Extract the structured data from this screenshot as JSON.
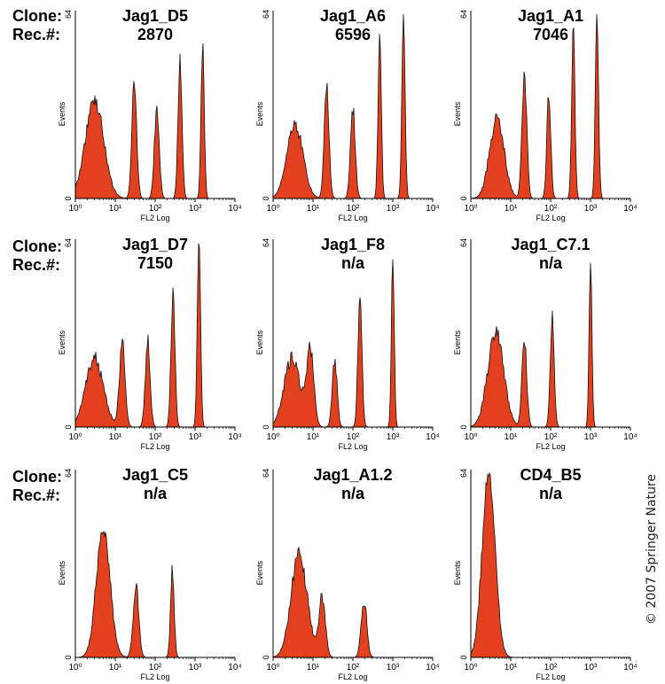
{
  "row_labels": [
    {
      "clone": "Clone:",
      "rec": "Rec.#:"
    },
    {
      "clone": "Clone:",
      "rec": "Rec.#:"
    },
    {
      "clone": "Clone:",
      "rec": "Rec.#:"
    }
  ],
  "copyright": "© 2007 Springer Nature",
  "colors": {
    "fill": "#e2401f",
    "stroke": "#111111"
  },
  "chart_data": [
    {
      "type": "area",
      "title": "Jag1_D5",
      "subtitle": "2870",
      "xlabel": "FL2 Log",
      "ylabel": "Events",
      "xscale": "log",
      "xlim": [
        1,
        10000
      ],
      "ylim": [
        0,
        64
      ],
      "x_ticks": [
        "10⁰",
        "10¹",
        "10²",
        "10³",
        "10⁴"
      ],
      "y_ticks": [
        "0",
        "64"
      ],
      "peaks": [
        {
          "x": 3,
          "height": 34,
          "width": 0.23
        },
        {
          "x": 30,
          "height": 41,
          "width": 0.06
        },
        {
          "x": 110,
          "height": 32,
          "width": 0.06
        },
        {
          "x": 420,
          "height": 48,
          "width": 0.05
        },
        {
          "x": 1550,
          "height": 53,
          "width": 0.04
        }
      ]
    },
    {
      "type": "area",
      "title": "Jag1_A6",
      "subtitle": "6596",
      "xlabel": "FL2 Log",
      "ylabel": "Events",
      "xscale": "log",
      "xlim": [
        1,
        10000
      ],
      "ylim": [
        0,
        64
      ],
      "x_ticks": [
        "10⁰",
        "10¹",
        "10²",
        "10³",
        "10⁴"
      ],
      "y_ticks": [
        "0",
        "64"
      ],
      "peaks": [
        {
          "x": 3.5,
          "height": 26,
          "width": 0.2
        },
        {
          "x": 22,
          "height": 39,
          "width": 0.06
        },
        {
          "x": 100,
          "height": 31,
          "width": 0.06
        },
        {
          "x": 470,
          "height": 57,
          "width": 0.04
        },
        {
          "x": 1850,
          "height": 64,
          "width": 0.04
        }
      ]
    },
    {
      "type": "area",
      "title": "Jag1_A1",
      "subtitle": "7046",
      "xlabel": "FL2 Log",
      "ylabel": "Events",
      "xscale": "log",
      "xlim": [
        1,
        10000
      ],
      "ylim": [
        0,
        64
      ],
      "x_ticks": [
        "10⁰",
        "10¹",
        "10²",
        "10³",
        "10⁴"
      ],
      "y_ticks": [
        "0",
        "64"
      ],
      "peaks": [
        {
          "x": 4.5,
          "height": 28,
          "width": 0.18
        },
        {
          "x": 22,
          "height": 42,
          "width": 0.06
        },
        {
          "x": 90,
          "height": 36,
          "width": 0.05
        },
        {
          "x": 370,
          "height": 61,
          "width": 0.04
        },
        {
          "x": 1450,
          "height": 65,
          "width": 0.04
        }
      ]
    },
    {
      "type": "area",
      "title": "Jag1_D7",
      "subtitle": "7150",
      "xlabel": "FL2 Log",
      "ylabel": "Events",
      "xscale": "log",
      "xlim": [
        1,
        10000
      ],
      "ylim": [
        0,
        64
      ],
      "x_ticks": [
        "10⁰",
        "10¹",
        "10²",
        "10³",
        "10⁴"
      ],
      "y_ticks": [
        "0",
        "64"
      ],
      "peaks": [
        {
          "x": 3,
          "height": 24,
          "width": 0.22
        },
        {
          "x": 15,
          "height": 30,
          "width": 0.07
        },
        {
          "x": 65,
          "height": 30,
          "width": 0.06
        },
        {
          "x": 280,
          "height": 46,
          "width": 0.05
        },
        {
          "x": 1250,
          "height": 65,
          "width": 0.04
        }
      ]
    },
    {
      "type": "area",
      "title": "Jag1_F8",
      "subtitle": "n/a",
      "xlabel": "FL2 Log",
      "ylabel": "Events",
      "xscale": "log",
      "xlim": [
        1,
        10000
      ],
      "ylim": [
        0,
        64
      ],
      "x_ticks": [
        "10⁰",
        "10¹",
        "10²",
        "10³",
        "10⁴"
      ],
      "y_ticks": [
        "0",
        "64"
      ],
      "peaks": [
        {
          "x": 3,
          "height": 24,
          "width": 0.2
        },
        {
          "x": 8.5,
          "height": 26,
          "width": 0.09
        },
        {
          "x": 35,
          "height": 24,
          "width": 0.06
        },
        {
          "x": 150,
          "height": 45,
          "width": 0.05
        },
        {
          "x": 1000,
          "height": 60,
          "width": 0.035
        }
      ]
    },
    {
      "type": "area",
      "title": "Jag1_C7.1",
      "subtitle": "n/a",
      "xlabel": "FL2 Log",
      "ylabel": "Events",
      "xscale": "log",
      "xlim": [
        1,
        10000
      ],
      "ylim": [
        0,
        64
      ],
      "x_ticks": [
        "10⁰",
        "10¹",
        "10²",
        "10³",
        "10⁴"
      ],
      "y_ticks": [
        "0",
        "64"
      ],
      "peaks": [
        {
          "x": 4.2,
          "height": 33,
          "width": 0.2
        },
        {
          "x": 22,
          "height": 30,
          "width": 0.06
        },
        {
          "x": 110,
          "height": 38,
          "width": 0.05
        },
        {
          "x": 1000,
          "height": 57,
          "width": 0.035
        }
      ]
    },
    {
      "type": "area",
      "title": "Jag1_C5",
      "subtitle": "n/a",
      "xlabel": "FL2 Log",
      "ylabel": "Events",
      "xscale": "log",
      "xlim": [
        1,
        10000
      ],
      "ylim": [
        0,
        64
      ],
      "x_ticks": [
        "10⁰",
        "10¹",
        "10²",
        "10³",
        "10⁴"
      ],
      "y_ticks": [
        "0",
        "64"
      ],
      "peaks": [
        {
          "x": 5,
          "height": 45,
          "width": 0.17
        },
        {
          "x": 33,
          "height": 25,
          "width": 0.07
        },
        {
          "x": 270,
          "height": 31,
          "width": 0.045
        }
      ]
    },
    {
      "type": "area",
      "title": "Jag1_A1.2",
      "subtitle": "n/a",
      "xlabel": "FL2 Log",
      "ylabel": "Events",
      "xscale": "log",
      "xlim": [
        1,
        10000
      ],
      "ylim": [
        0,
        64
      ],
      "x_ticks": [
        "10⁰",
        "10¹",
        "10²",
        "10³",
        "10⁴"
      ],
      "y_ticks": [
        "0",
        "64"
      ],
      "peaks": [
        {
          "x": 4.5,
          "height": 36,
          "width": 0.2
        },
        {
          "x": 17,
          "height": 21,
          "width": 0.08
        },
        {
          "x": 190,
          "height": 20,
          "width": 0.07
        }
      ]
    },
    {
      "type": "area",
      "title": "CD4_B5",
      "subtitle": "n/a",
      "xlabel": "FL2 Log",
      "ylabel": "Events",
      "xscale": "log",
      "xlim": [
        1,
        10000
      ],
      "ylim": [
        0,
        64
      ],
      "x_ticks": [
        "10⁰",
        "10¹",
        "10²",
        "10³",
        "10⁴"
      ],
      "y_ticks": [
        "0",
        "64"
      ],
      "peaks": [
        {
          "x": 2.8,
          "height": 64,
          "width": 0.16
        }
      ]
    }
  ]
}
